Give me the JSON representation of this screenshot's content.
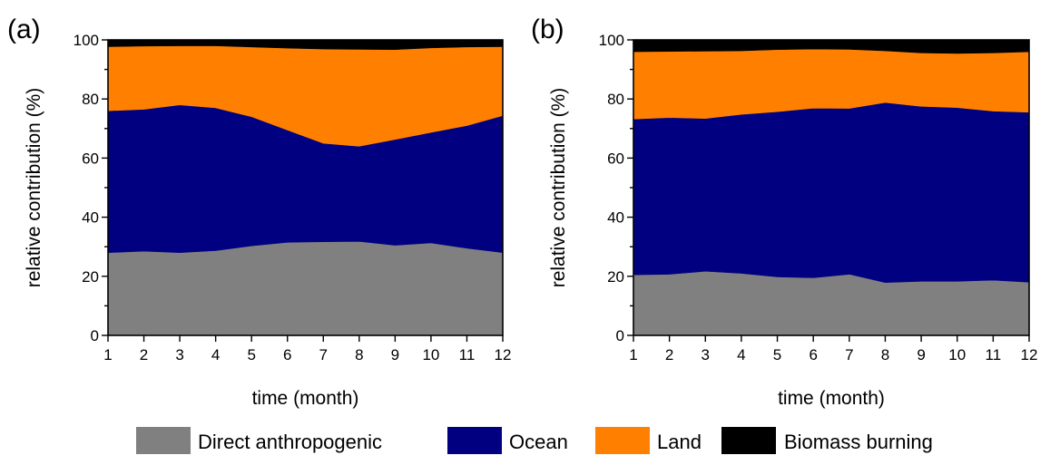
{
  "chart_data": [
    {
      "type": "area",
      "stacked": true,
      "panel_label": "(a)",
      "xlabel": "time (month)",
      "ylabel": "relative contribution (%)",
      "xlim": [
        1,
        12
      ],
      "ylim": [
        0,
        100
      ],
      "x": [
        1,
        2,
        3,
        4,
        5,
        6,
        7,
        8,
        9,
        10,
        11,
        12
      ],
      "xticks": [
        1,
        2,
        3,
        4,
        5,
        6,
        7,
        8,
        9,
        10,
        11,
        12
      ],
      "yticks": [
        0,
        20,
        40,
        60,
        80,
        100
      ],
      "grid": false,
      "series": [
        {
          "name": "Direct anthropogenic",
          "values": [
            28,
            28.5,
            28,
            28.7,
            30.3,
            31.5,
            31.7,
            31.8,
            30.5,
            31.3,
            29.5,
            28
          ]
        },
        {
          "name": "Ocean",
          "values": [
            48,
            48,
            50,
            48.3,
            43.7,
            38,
            33.3,
            32.2,
            35.8,
            37.4,
            41.5,
            46.4
          ]
        },
        {
          "name": "Land",
          "values": [
            21.7,
            21.4,
            20,
            21,
            23.6,
            27.7,
            31.9,
            32.8,
            30.4,
            28.6,
            26.6,
            23.3
          ]
        },
        {
          "name": "Biomass burning",
          "values": [
            2.3,
            2.1,
            2,
            2,
            2.4,
            2.8,
            3.1,
            3.2,
            3.3,
            2.7,
            2.4,
            2.3
          ]
        }
      ]
    },
    {
      "type": "area",
      "stacked": true,
      "panel_label": "(b)",
      "xlabel": "time (month)",
      "ylabel": "relative contribution (%)",
      "xlim": [
        1,
        12
      ],
      "ylim": [
        0,
        100
      ],
      "x": [
        1,
        2,
        3,
        4,
        5,
        6,
        7,
        8,
        9,
        10,
        11,
        12
      ],
      "xticks": [
        1,
        2,
        3,
        4,
        5,
        6,
        7,
        8,
        9,
        10,
        11,
        12
      ],
      "yticks": [
        0,
        20,
        40,
        60,
        80,
        100
      ],
      "grid": false,
      "series": [
        {
          "name": "Direct anthropogenic",
          "values": [
            20.5,
            20.7,
            21.7,
            21,
            19.8,
            19.5,
            20.7,
            17.9,
            18.3,
            18.3,
            18.7,
            18
          ]
        },
        {
          "name": "Ocean",
          "values": [
            52.7,
            53,
            51.7,
            53.8,
            55.9,
            57.4,
            56.1,
            60.9,
            59.2,
            58.8,
            57.2,
            57.5
          ]
        },
        {
          "name": "Land",
          "values": [
            22.8,
            22.4,
            22.8,
            21.5,
            21,
            20,
            20,
            17.5,
            18.1,
            18.3,
            19.7,
            20.5
          ]
        },
        {
          "name": "Biomass burning",
          "values": [
            4,
            3.9,
            3.8,
            3.7,
            3.3,
            3.1,
            3.2,
            3.7,
            4.4,
            4.6,
            4.4,
            4
          ]
        }
      ]
    }
  ],
  "legend": {
    "placement": "bottom",
    "items": [
      {
        "label": "Direct anthropogenic",
        "color": "#808080"
      },
      {
        "label": "Ocean",
        "color": "#000080"
      },
      {
        "label": "Land",
        "color": "#ff8000"
      },
      {
        "label": "Biomass burning",
        "color": "#000000"
      }
    ]
  }
}
